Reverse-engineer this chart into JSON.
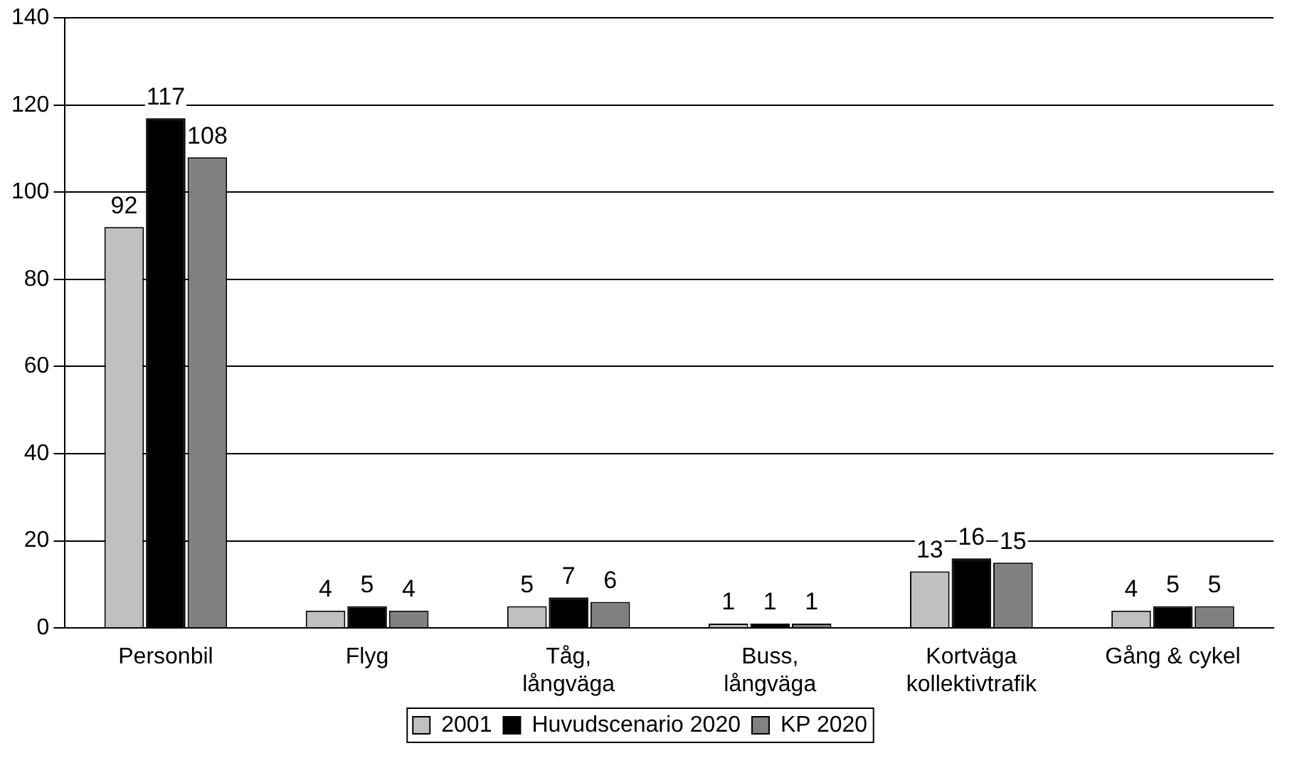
{
  "chart_data": {
    "type": "bar",
    "categories": [
      "Personbil",
      "Flyg",
      "Tåg,\nlångväga",
      "Buss,\nlångväga",
      "Kortväga\nkollektivtrafik",
      "Gång & cykel"
    ],
    "series": [
      {
        "name": "2001",
        "color": "#c0c0c0",
        "values": [
          92,
          4,
          5,
          1,
          13,
          4
        ]
      },
      {
        "name": "Huvudscenario 2020",
        "color": "#000000",
        "values": [
          117,
          5,
          7,
          1,
          16,
          5
        ]
      },
      {
        "name": "KP 2020",
        "color": "#808080",
        "values": [
          108,
          4,
          6,
          1,
          15,
          5
        ]
      }
    ],
    "ylim": [
      0,
      140
    ],
    "yticks": [
      0,
      20,
      40,
      60,
      80,
      100,
      120,
      140
    ],
    "grid": "y",
    "legend": "bottom",
    "data_labels": true
  }
}
